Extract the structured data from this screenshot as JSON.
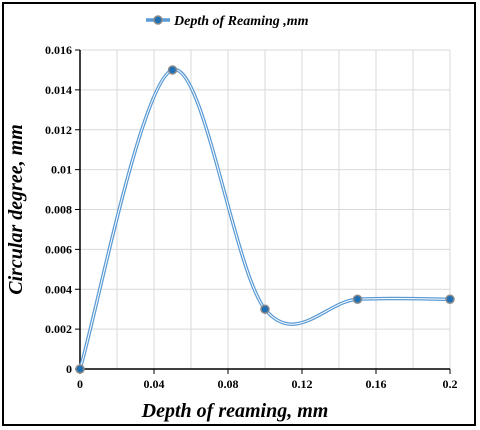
{
  "chart_data": {
    "type": "line",
    "smooth": true,
    "xlabel": "Depth of reaming, mm",
    "ylabel": "Circular degree, mm",
    "xlim": [
      0,
      0.2
    ],
    "ylim": [
      0,
      0.016
    ],
    "x_ticks": [
      "0",
      "0.04",
      "0.08",
      "0.12",
      "0.16",
      "0.2"
    ],
    "y_ticks": [
      "0",
      "0.002",
      "0.004",
      "0.006",
      "0.008",
      "0.01",
      "0.012",
      "0.014",
      "0.016"
    ],
    "grid": true,
    "legend_position": "top",
    "series": [
      {
        "name": "Depth of Reaming ,mm",
        "color": "#5b9bd5",
        "marker_color": "#1f6fb5",
        "x": [
          0,
          0.05,
          0.1,
          0.15,
          0.2
        ],
        "y": [
          0,
          0.015,
          0.003,
          0.0035,
          0.0035
        ]
      }
    ]
  }
}
